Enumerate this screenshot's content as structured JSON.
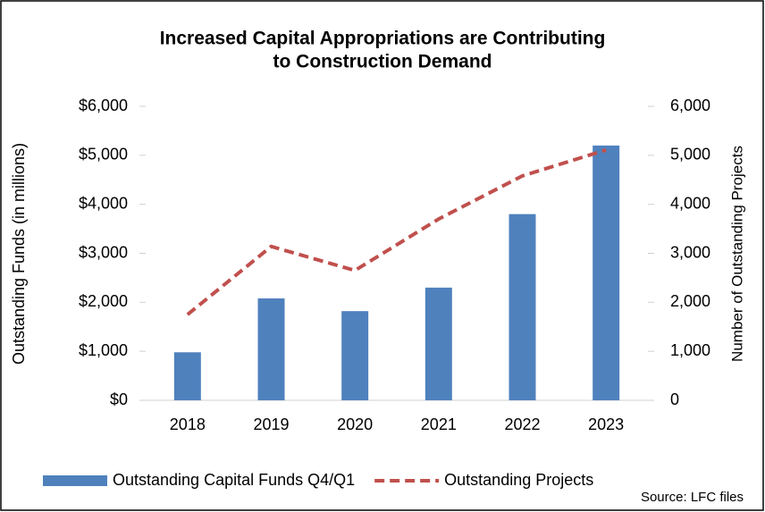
{
  "chart_data": {
    "type": "bar",
    "title": [
      "Increased Capital Appropriations are Contributing",
      "to Construction Demand"
    ],
    "categories": [
      "2018",
      "2019",
      "2020",
      "2021",
      "2022",
      "2023"
    ],
    "series": [
      {
        "name": "Outstanding Capital Funds Q4/Q1",
        "type": "bar",
        "color": "#4f81bd",
        "values": [
          980,
          2080,
          1820,
          2300,
          3800,
          5200
        ]
      },
      {
        "name": "Outstanding Projects",
        "type": "line",
        "dashed": true,
        "color": "#c0504d",
        "axis": "y2",
        "values": [
          1750,
          3140,
          2650,
          3700,
          4580,
          5110
        ]
      }
    ],
    "ylabel": "Outstanding Funds (in millions)",
    "y2label": "Number of Outstanding Projects",
    "ylim": [
      0,
      6000
    ],
    "yticks": [
      {
        "value": 0,
        "label": "$0"
      },
      {
        "value": 1000,
        "label": "$1,000"
      },
      {
        "value": 2000,
        "label": "$2,000"
      },
      {
        "value": 3000,
        "label": "$3,000"
      },
      {
        "value": 4000,
        "label": "$4,000"
      },
      {
        "value": 5000,
        "label": "$5,000"
      },
      {
        "value": 6000,
        "label": "$6,000"
      }
    ],
    "y2lim": [
      0,
      6000
    ],
    "y2ticks": [
      0,
      {
        "value": 1000,
        "label": "1,000"
      },
      {
        "value": 2000,
        "label": "2,000"
      },
      {
        "value": 3000,
        "label": "3,000"
      },
      {
        "value": 4000,
        "label": "4,000"
      },
      {
        "value": 5000,
        "label": "5,000"
      },
      {
        "value": 6000,
        "label": "6,000"
      }
    ],
    "source": "Source: LFC files",
    "legend": "bottom"
  }
}
